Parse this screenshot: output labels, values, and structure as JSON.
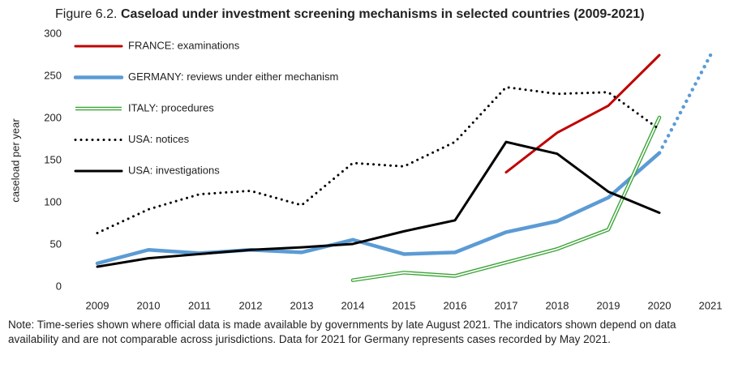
{
  "chart_data": {
    "type": "line",
    "figure_label": "Figure 6.2.",
    "title": "Caseload under investment screening mechanisms in selected countries (2009-2021)",
    "y_label": "caseload per year",
    "categories": [
      "2009",
      "2010",
      "2011",
      "2012",
      "2013",
      "2014",
      "2015",
      "2016",
      "2017",
      "2018",
      "2019",
      "2020",
      "2021"
    ],
    "ylim": [
      0,
      300
    ],
    "yticks": [
      0,
      50,
      100,
      150,
      200,
      250,
      300
    ],
    "grid": false,
    "legend": "top-left",
    "series": [
      {
        "name": "FRANCE: examinations",
        "color": "#c00000",
        "style": "solid",
        "values": [
          null,
          null,
          null,
          null,
          null,
          null,
          null,
          null,
          136,
          183,
          215,
          275,
          null
        ]
      },
      {
        "name": "GERMANY: reviews under either mechanism",
        "color": "#5b9bd5",
        "style": "solid",
        "dotted_from": "2020",
        "values": [
          28,
          44,
          40,
          44,
          41,
          56,
          39,
          41,
          65,
          78,
          106,
          159,
          275
        ]
      },
      {
        "name": "ITALY: procedures",
        "color": "#3aa335",
        "style": "double",
        "values": [
          null,
          null,
          null,
          null,
          null,
          8,
          17,
          13,
          29,
          45,
          68,
          201,
          null
        ]
      },
      {
        "name": "USA: notices",
        "color": "#000000",
        "style": "dotted",
        "values": [
          64,
          92,
          110,
          114,
          97,
          147,
          143,
          172,
          237,
          229,
          231,
          187,
          null
        ]
      },
      {
        "name": "USA: investigations",
        "color": "#000000",
        "style": "solid",
        "values": [
          24,
          34,
          39,
          44,
          47,
          51,
          66,
          79,
          172,
          158,
          113,
          88,
          null
        ]
      }
    ],
    "note": "Note: Time-series shown where official data is made available by governments by late August 2021. The indicators shown depend on data availability and are not comparable across jurisdictions. Data for 2021 for Germany represents cases recorded by May 2021."
  }
}
